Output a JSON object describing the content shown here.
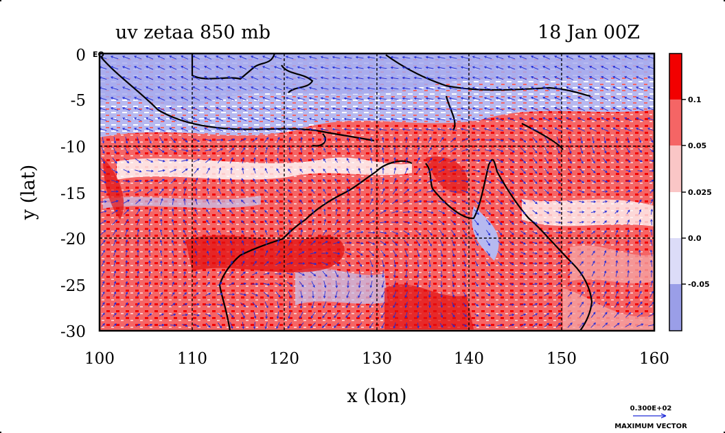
{
  "title_left": "uv zetaa 850 mb",
  "title_right": "18 Jan 00Z",
  "x_axis": {
    "label": "x (lon)",
    "ticks": [
      "100",
      "110",
      "120",
      "130",
      "140",
      "150",
      "160"
    ],
    "range": [
      100,
      160
    ]
  },
  "y_axis": {
    "label": "y (lat)",
    "ticks": [
      "0",
      "-5",
      "-10",
      "-15",
      "-20",
      "-25",
      "-30"
    ],
    "range": [
      -30,
      0
    ],
    "eq_label": "EQ"
  },
  "colorbar": {
    "labels": [
      "0.1",
      "0.05",
      "0.025",
      "0.0",
      "-0.05"
    ],
    "colors": [
      "#f20000",
      "#f56565",
      "#fac6c6",
      "#ffffff",
      "#dcdcf8",
      "#9a9ee8"
    ]
  },
  "legend": {
    "value": "0.300E+02",
    "label": "MAXIMUM VECTOR"
  },
  "colors": {
    "vector": "#1f2bd8",
    "coast": "#000000",
    "grid": "#000000",
    "ocean_blue": "#b2b5f0",
    "land_red": "#f26060"
  }
}
